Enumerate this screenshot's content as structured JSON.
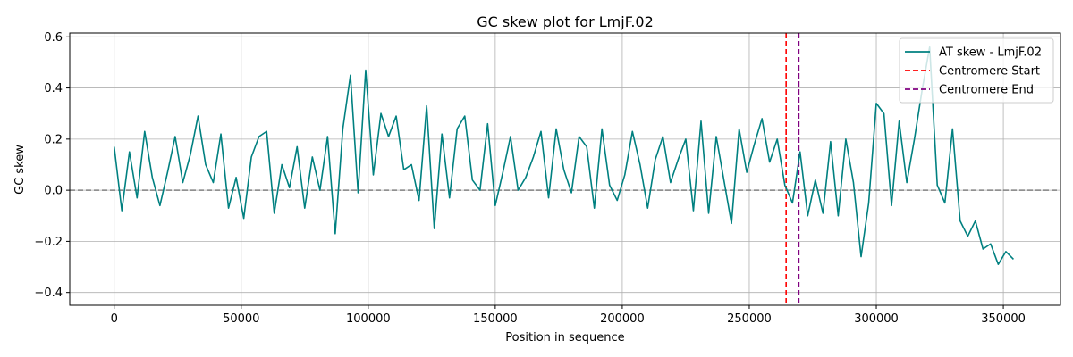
{
  "chart_data": {
    "type": "line",
    "title": "GC skew plot for LmjF.02",
    "xlabel": "Position in sequence",
    "ylabel": "GC skew",
    "xlim": [
      -17500,
      372500
    ],
    "ylim": [
      -0.45,
      0.615
    ],
    "xticks": [
      0,
      50000,
      100000,
      150000,
      200000,
      250000,
      300000,
      350000
    ],
    "yticks": [
      -0.4,
      -0.2,
      0.0,
      0.2,
      0.4,
      0.6
    ],
    "grid": true,
    "legend_position": "top-right",
    "series": [
      {
        "name": "AT skew - LmjF.02",
        "color": "#008080",
        "x": [
          0,
          3000,
          6000,
          9000,
          12000,
          15000,
          18000,
          21000,
          24000,
          27000,
          30000,
          33000,
          36000,
          39000,
          42000,
          45000,
          48000,
          51000,
          54000,
          57000,
          60000,
          63000,
          66000,
          69000,
          72000,
          75000,
          78000,
          81000,
          84000,
          87000,
          90000,
          93000,
          96000,
          99000,
          102000,
          105000,
          108000,
          111000,
          114000,
          117000,
          120000,
          123000,
          126000,
          129000,
          132000,
          135000,
          138000,
          141000,
          144000,
          147000,
          150000,
          153000,
          156000,
          159000,
          162000,
          165000,
          168000,
          171000,
          174000,
          177000,
          180000,
          183000,
          186000,
          189000,
          192000,
          195000,
          198000,
          201000,
          204000,
          207000,
          210000,
          213000,
          216000,
          219000,
          222000,
          225000,
          228000,
          231000,
          234000,
          237000,
          240000,
          243000,
          246000,
          249000,
          252000,
          255000,
          258000,
          261000,
          264000,
          267000,
          270000,
          273000,
          276000,
          279000,
          282000,
          285000,
          288000,
          291000,
          294000,
          297000,
          300000,
          303000,
          306000,
          309000,
          312000,
          315000,
          318000,
          321000,
          324000,
          327000,
          330000,
          333000,
          336000,
          339000,
          342000,
          345000,
          348000,
          351000,
          354000
        ],
        "y": [
          0.17,
          -0.08,
          0.15,
          -0.03,
          0.23,
          0.05,
          -0.06,
          0.07,
          0.21,
          0.03,
          0.14,
          0.29,
          0.1,
          0.03,
          0.22,
          -0.07,
          0.05,
          -0.11,
          0.13,
          0.21,
          0.23,
          -0.09,
          0.1,
          0.01,
          0.17,
          -0.07,
          0.13,
          0.0,
          0.21,
          -0.17,
          0.24,
          0.45,
          -0.01,
          0.47,
          0.06,
          0.3,
          0.21,
          0.29,
          0.08,
          0.1,
          -0.04,
          0.33,
          -0.15,
          0.22,
          -0.03,
          0.24,
          0.29,
          0.04,
          0.0,
          0.26,
          -0.06,
          0.07,
          0.21,
          0.0,
          0.05,
          0.13,
          0.23,
          -0.03,
          0.24,
          0.08,
          -0.01,
          0.21,
          0.17,
          -0.07,
          0.24,
          0.02,
          -0.04,
          0.06,
          0.23,
          0.1,
          -0.07,
          0.12,
          0.21,
          0.03,
          0.12,
          0.2,
          -0.08,
          0.27,
          -0.09,
          0.21,
          0.04,
          -0.13,
          0.24,
          0.07,
          0.18,
          0.28,
          0.11,
          0.2,
          0.02,
          -0.05,
          0.15,
          -0.1,
          0.04,
          -0.09,
          0.19,
          -0.1,
          0.2,
          0.03,
          -0.26,
          -0.05,
          0.34,
          0.3,
          -0.06,
          0.27,
          0.03,
          0.2,
          0.39,
          0.56,
          0.02,
          -0.05,
          0.24,
          -0.12,
          -0.18,
          -0.12,
          -0.23,
          -0.21,
          -0.29,
          -0.24,
          -0.27
        ]
      }
    ],
    "reference_lines": [
      {
        "orientation": "vertical",
        "x": 264500,
        "color": "#ff0000",
        "style": "dashed",
        "name": "Centromere Start"
      },
      {
        "orientation": "vertical",
        "x": 269500,
        "color": "#800080",
        "style": "dashed",
        "name": "Centromere End"
      },
      {
        "orientation": "horizontal",
        "y": 0.0,
        "color": "#808080",
        "style": "dashed",
        "name": ""
      }
    ]
  }
}
